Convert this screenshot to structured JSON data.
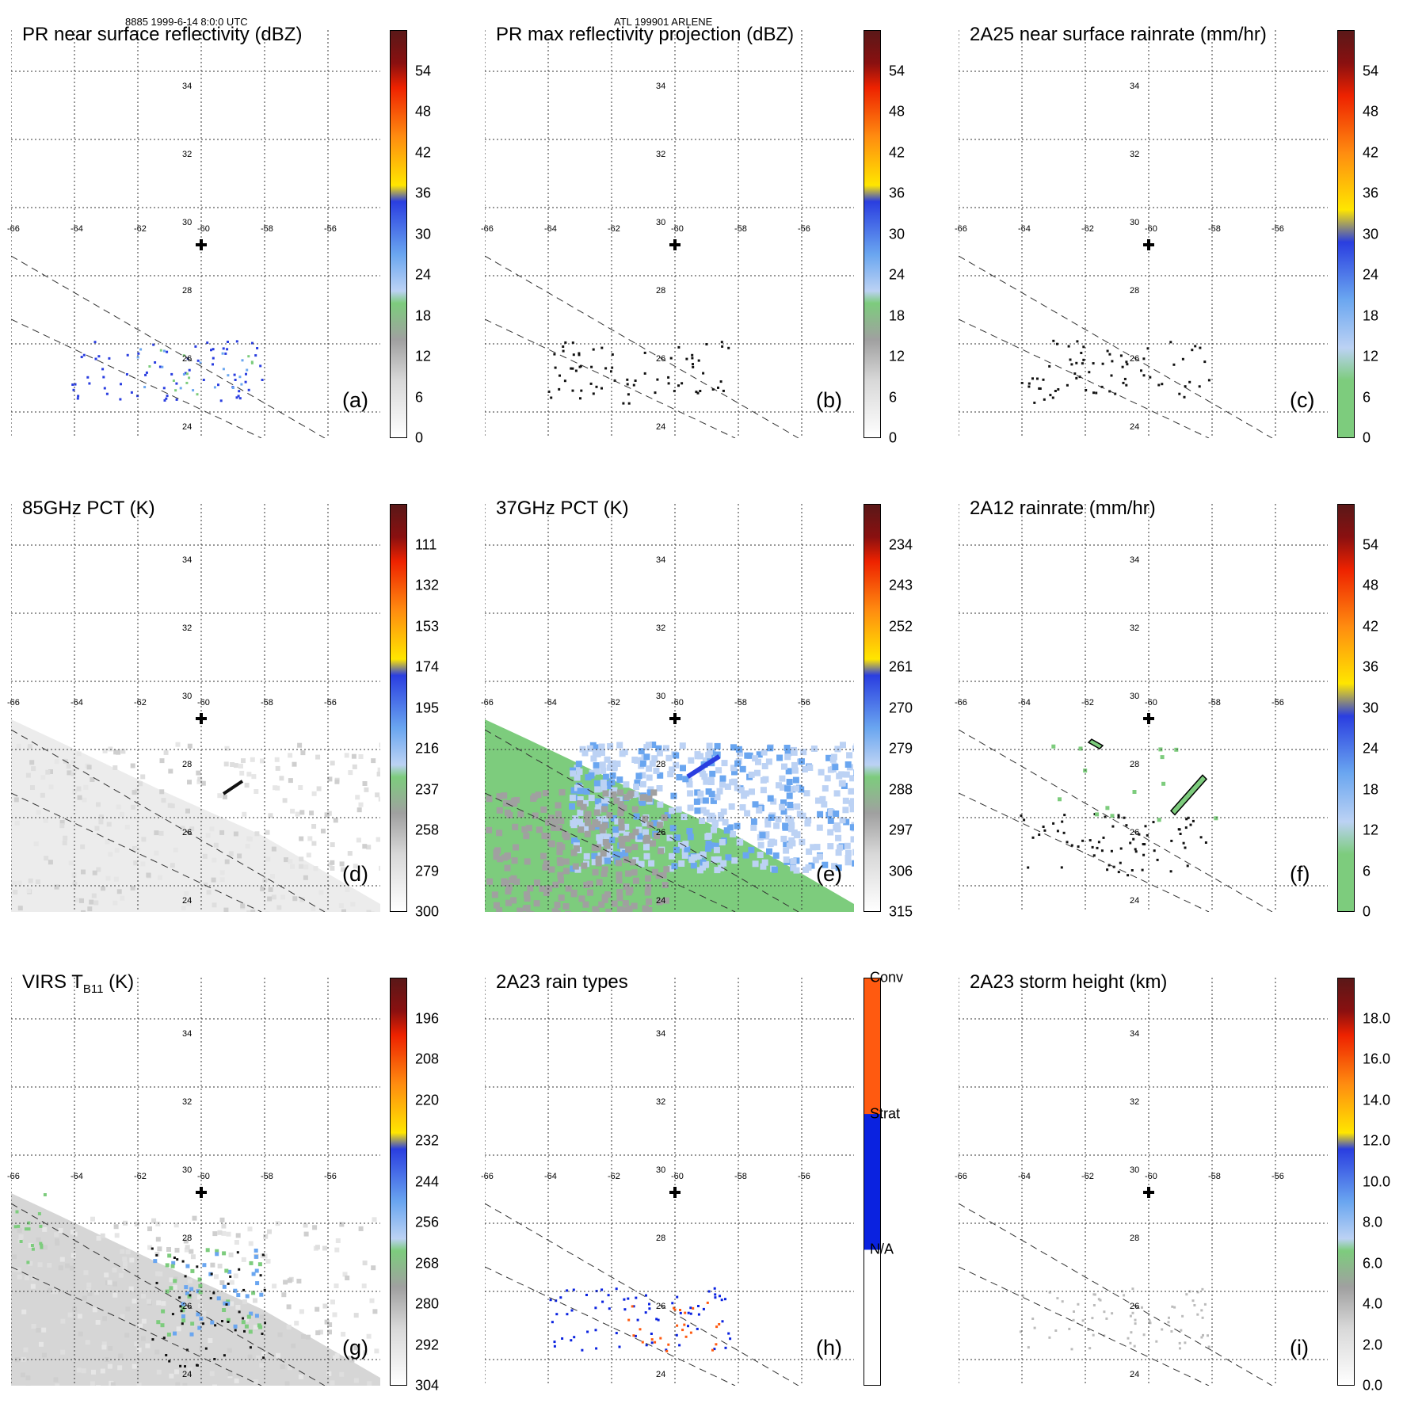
{
  "header": {
    "left": "8885 1999-6-14 8:0:0 UTC",
    "center": "ATL 199901 ARLENE"
  },
  "map": {
    "lon_ticks": [
      "-66",
      "-64",
      "-62",
      "-60",
      "-58",
      "-56"
    ],
    "lat_ticks": [
      "34",
      "32",
      "30",
      "28",
      "26",
      "24"
    ]
  },
  "colors": {
    "white": "#ffffff",
    "lightgray": "#d8d8d8",
    "gray": "#a0a0a0",
    "green": "#7dcc7d",
    "lightblue": "#bcd2f4",
    "midblue": "#6aa6f0",
    "blue": "#2a3ee0",
    "yellow": "#ffe600",
    "orange": "#ff8c10",
    "red": "#ee2200",
    "darkred": "#8a1010",
    "maroon": "#5a1818",
    "conv": "#ff5a10",
    "strat": "#0a22e0"
  },
  "panels": [
    {
      "id": "a",
      "title": "PR near surface reflectivity (dBZ)",
      "label": "(a)",
      "ticks": [
        "54",
        "48",
        "42",
        "36",
        "30",
        "24",
        "18",
        "12",
        "6",
        "0"
      ],
      "scheme": "dbz",
      "field": "pr"
    },
    {
      "id": "b",
      "title": "PR max reflectivity projection (dBZ)",
      "label": "(b)",
      "ticks": [
        "54",
        "48",
        "42",
        "36",
        "30",
        "24",
        "18",
        "12",
        "6",
        "0"
      ],
      "scheme": "dbz",
      "field": "prmax"
    },
    {
      "id": "c",
      "title": "2A25 near surface rainrate (mm/hr)",
      "label": "(c)",
      "ticks": [
        "54",
        "48",
        "42",
        "36",
        "30",
        "24",
        "18",
        "12",
        "6",
        "0"
      ],
      "scheme": "rain",
      "field": "prmax"
    },
    {
      "id": "d",
      "title": "85GHz PCT (K)",
      "label": "(d)",
      "ticks": [
        "111",
        "132",
        "153",
        "174",
        "195",
        "216",
        "237",
        "258",
        "279",
        "300"
      ],
      "scheme": "dbz",
      "field": "pct85"
    },
    {
      "id": "e",
      "title": "37GHz PCT (K)",
      "label": "(e)",
      "ticks": [
        "234",
        "243",
        "252",
        "261",
        "270",
        "279",
        "288",
        "297",
        "306",
        "315"
      ],
      "scheme": "dbz",
      "field": "pct37"
    },
    {
      "id": "f",
      "title": "2A12 rainrate (mm/hr)",
      "label": "(f)",
      "ticks": [
        "54",
        "48",
        "42",
        "36",
        "30",
        "24",
        "18",
        "12",
        "6",
        "0"
      ],
      "scheme": "rain",
      "field": "tmi"
    },
    {
      "id": "g",
      "title_main": "VIRS T",
      "title_sub": "B11",
      "title_unit": " (K)",
      "label": "(g)",
      "ticks": [
        "196",
        "208",
        "220",
        "232",
        "244",
        "256",
        "268",
        "280",
        "292",
        "304"
      ],
      "scheme": "dbz",
      "field": "virs"
    },
    {
      "id": "h",
      "title": "2A23 rain types",
      "label": "(h)",
      "ticks": [
        "Conv",
        "Strat",
        "N/A"
      ],
      "scheme": "types",
      "field": "types"
    },
    {
      "id": "i",
      "title": "2A23 storm height (km)",
      "label": "(i)",
      "ticks": [
        "18.0",
        "16.0",
        "14.0",
        "12.0",
        "10.0",
        "8.0",
        "6.0",
        "4.0",
        "2.0",
        "0.0"
      ],
      "scheme": "dbz",
      "field": "height"
    }
  ]
}
